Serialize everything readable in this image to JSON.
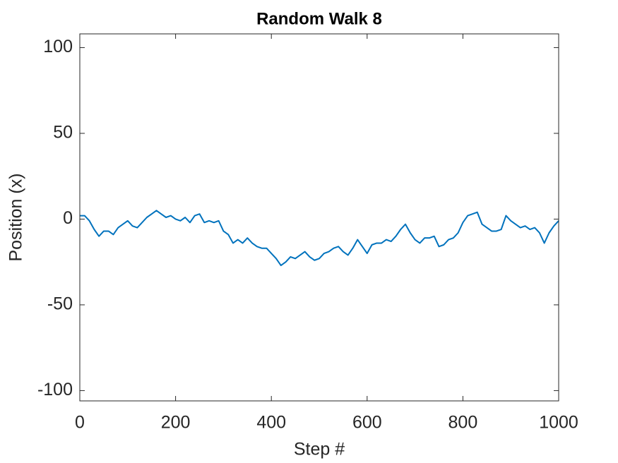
{
  "chart_data": {
    "type": "line",
    "title": "Random Walk 8",
    "xlabel": "Step #",
    "ylabel": "Position (x)",
    "x": [
      0,
      10,
      20,
      30,
      40,
      50,
      60,
      70,
      80,
      90,
      100,
      110,
      120,
      130,
      140,
      150,
      160,
      170,
      180,
      190,
      200,
      210,
      220,
      230,
      240,
      250,
      260,
      270,
      280,
      290,
      300,
      310,
      320,
      330,
      340,
      350,
      360,
      370,
      380,
      390,
      400,
      410,
      420,
      430,
      440,
      450,
      460,
      470,
      480,
      490,
      500,
      510,
      520,
      530,
      540,
      550,
      560,
      570,
      580,
      590,
      600,
      610,
      620,
      630,
      640,
      650,
      660,
      670,
      680,
      690,
      700,
      710,
      720,
      730,
      740,
      750,
      760,
      770,
      780,
      790,
      800,
      810,
      820,
      830,
      840,
      850,
      860,
      870,
      880,
      890,
      900,
      910,
      920,
      930,
      940,
      950,
      960,
      970,
      980,
      990,
      1000
    ],
    "values": [
      2,
      2,
      -1,
      -6,
      -10,
      -7,
      -7,
      -9,
      -5,
      -3,
      -1,
      -4,
      -5,
      -2,
      1,
      3,
      5,
      3,
      1,
      2,
      0,
      -1,
      1,
      -2,
      2,
      3,
      -2,
      -1,
      -2,
      -1,
      -7,
      -9,
      -14,
      -12,
      -14,
      -11,
      -14,
      -16,
      -17,
      -17,
      -20,
      -23,
      -27,
      -25,
      -22,
      -23,
      -21,
      -19,
      -22,
      -24,
      -23,
      -20,
      -19,
      -17,
      -16,
      -19,
      -21,
      -17,
      -12,
      -16,
      -20,
      -15,
      -14,
      -14,
      -12,
      -13,
      -10,
      -6,
      -3,
      -8,
      -12,
      -14,
      -11,
      -11,
      -10,
      -16,
      -15,
      -12,
      -11,
      -8,
      -2,
      2,
      3,
      4,
      -3,
      -5,
      -7,
      -7,
      -6,
      2,
      -1,
      -3,
      -5,
      -4,
      -6,
      -5,
      -8,
      -14,
      -8,
      -4,
      -1
    ],
    "color": "#0072bd",
    "xlim": [
      0,
      1000
    ],
    "xticks": [
      0,
      200,
      400,
      600,
      800,
      1000
    ],
    "ylim": [
      -106,
      108
    ],
    "yticks": [
      -100,
      -50,
      0,
      50,
      100
    ]
  }
}
